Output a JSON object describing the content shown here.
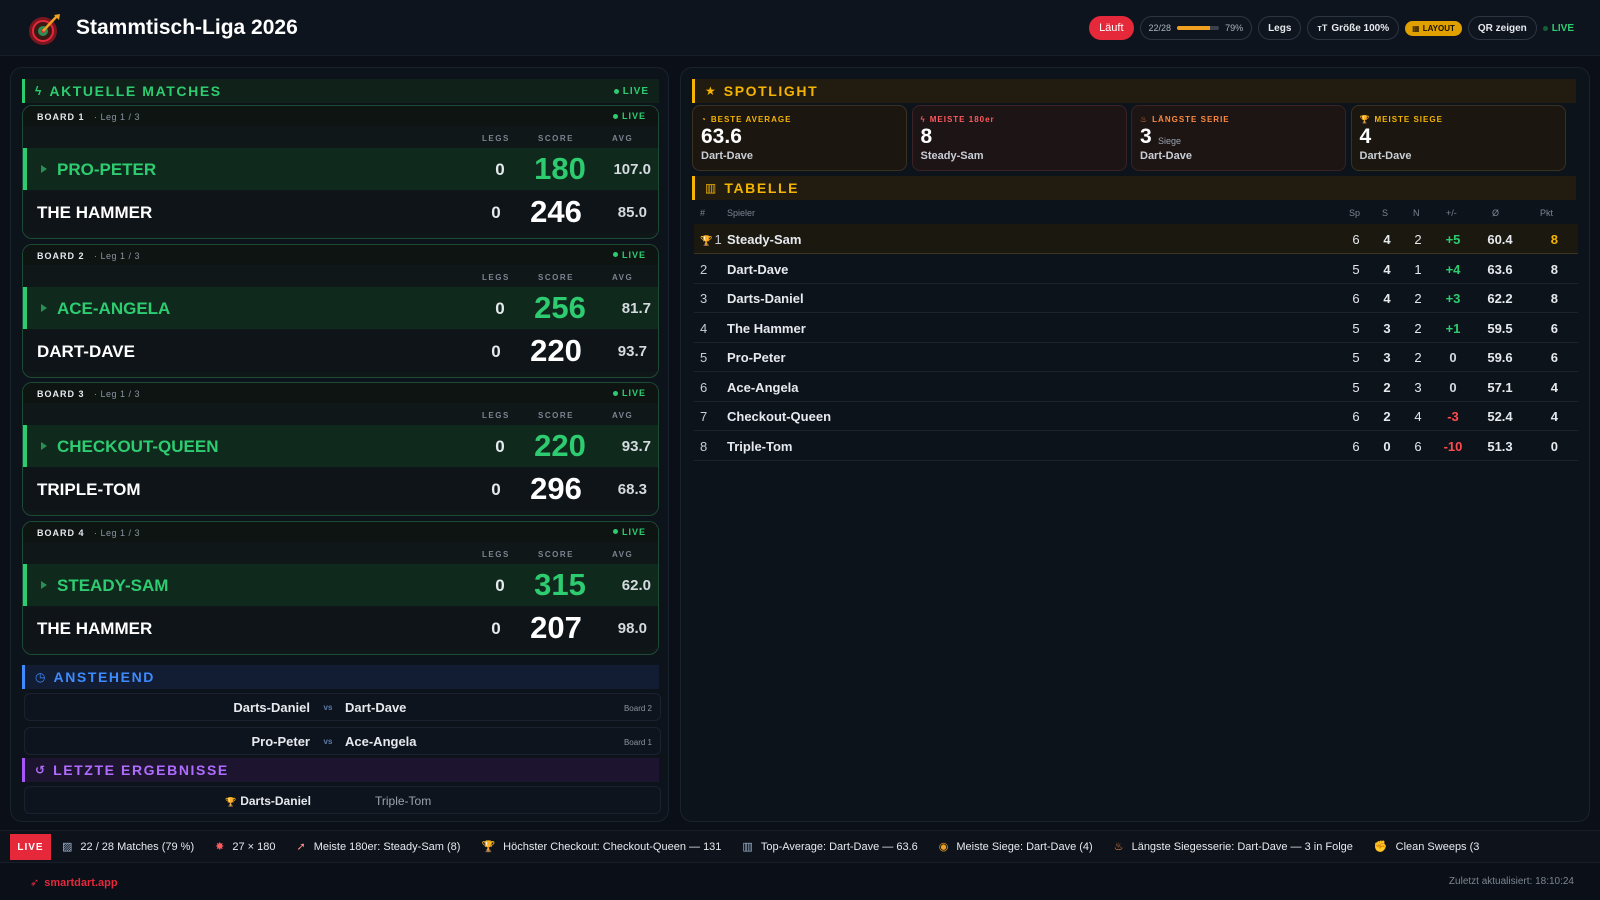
{
  "header": {
    "title": "Stammtisch-Liga 2026",
    "status": "Läuft",
    "progress_label": "22/28",
    "progress_percent": "79%",
    "progress_fraction": 0.79,
    "mode_label": "Legs",
    "size_label": "Größe 100%",
    "layout_label": "LAYOUT",
    "qr_label": "QR zeigen",
    "live_label": "LIVE"
  },
  "matches": {
    "heading": "AKTUELLE MATCHES",
    "live_label": "LIVE",
    "col_legs": "LEGS",
    "col_score": "SCORE",
    "col_avg": "AVG",
    "boards": [
      {
        "title": "BOARD 1",
        "leg": "· Leg 1 / 3",
        "live": "LIVE",
        "p1": {
          "name": "PRO-PETER",
          "legs": "0",
          "score": "180",
          "avg": "107.0"
        },
        "p2": {
          "name": "THE HAMMER",
          "legs": "0",
          "score": "246",
          "avg": "85.0"
        }
      },
      {
        "title": "BOARD 2",
        "leg": "· Leg 1 / 3",
        "live": "LIVE",
        "p1": {
          "name": "ACE-ANGELA",
          "legs": "0",
          "score": "256",
          "avg": "81.7"
        },
        "p2": {
          "name": "DART-DAVE",
          "legs": "0",
          "score": "220",
          "avg": "93.7"
        }
      },
      {
        "title": "BOARD 3",
        "leg": "· Leg 1 / 3",
        "live": "LIVE",
        "p1": {
          "name": "CHECKOUT-QUEEN",
          "legs": "0",
          "score": "220",
          "avg": "93.7"
        },
        "p2": {
          "name": "TRIPLE-TOM",
          "legs": "0",
          "score": "296",
          "avg": "68.3"
        }
      },
      {
        "title": "BOARD 4",
        "leg": "· Leg 1 / 3",
        "live": "LIVE",
        "p1": {
          "name": "STEADY-SAM",
          "legs": "0",
          "score": "315",
          "avg": "62.0"
        },
        "p2": {
          "name": "THE HAMMER",
          "legs": "0",
          "score": "207",
          "avg": "98.0"
        }
      }
    ]
  },
  "upcoming": {
    "heading": "ANSTEHEND",
    "vs": "vs",
    "items": [
      {
        "p1": "Darts-Daniel",
        "p2": "Dart-Dave",
        "board": "Board 2"
      },
      {
        "p1": "Pro-Peter",
        "p2": "Ace-Angela",
        "board": "Board 1"
      }
    ]
  },
  "results": {
    "heading": "LETZTE ERGEBNISSE",
    "items": [
      {
        "winner": "Darts-Daniel",
        "loser": "Triple-Tom"
      }
    ]
  },
  "spotlight": {
    "heading": "SPOTLIGHT",
    "cards": [
      {
        "label": "BESTE AVERAGE",
        "value": "63.6",
        "sub": "",
        "name": "Dart-Dave",
        "icon": "gauge-icon",
        "color": "#f5b400"
      },
      {
        "label": "MEISTE 180er",
        "value": "8",
        "sub": "",
        "name": "Steady-Sam",
        "icon": "bolt-icon",
        "color": "#ff5a5f"
      },
      {
        "label": "LÄNGSTE SERIE",
        "value": "3",
        "sub": "Siege",
        "name": "Dart-Dave",
        "icon": "flame-icon",
        "color": "#ff8a3d"
      },
      {
        "label": "MEISTE SIEGE",
        "value": "4",
        "sub": "",
        "name": "Dart-Dave",
        "icon": "trophy-icon",
        "color": "#f5b400"
      }
    ]
  },
  "table": {
    "heading": "TABELLE",
    "columns": {
      "rank": "#",
      "player": "Spieler",
      "sp": "Sp",
      "s": "S",
      "n": "N",
      "diff": "+/-",
      "avg": "Ø",
      "pts": "Pkt"
    },
    "rows": [
      {
        "rank": "1",
        "name": "Steady-Sam",
        "sp": "6",
        "s": "4",
        "n": "2",
        "diff": "+5",
        "avg": "60.4",
        "pts": "8"
      },
      {
        "rank": "2",
        "name": "Dart-Dave",
        "sp": "5",
        "s": "4",
        "n": "1",
        "diff": "+4",
        "avg": "63.6",
        "pts": "8"
      },
      {
        "rank": "3",
        "name": "Darts-Daniel",
        "sp": "6",
        "s": "4",
        "n": "2",
        "diff": "+3",
        "avg": "62.2",
        "pts": "8"
      },
      {
        "rank": "4",
        "name": "The Hammer",
        "sp": "5",
        "s": "3",
        "n": "2",
        "diff": "+1",
        "avg": "59.5",
        "pts": "6"
      },
      {
        "rank": "5",
        "name": "Pro-Peter",
        "sp": "5",
        "s": "3",
        "n": "2",
        "diff": "0",
        "avg": "59.6",
        "pts": "6"
      },
      {
        "rank": "6",
        "name": "Ace-Angela",
        "sp": "5",
        "s": "2",
        "n": "3",
        "diff": "0",
        "avg": "57.1",
        "pts": "4"
      },
      {
        "rank": "7",
        "name": "Checkout-Queen",
        "sp": "6",
        "s": "2",
        "n": "4",
        "diff": "-3",
        "avg": "52.4",
        "pts": "4"
      },
      {
        "rank": "8",
        "name": "Triple-Tom",
        "sp": "6",
        "s": "0",
        "n": "6",
        "diff": "-10",
        "avg": "51.3",
        "pts": "0"
      }
    ]
  },
  "ticker": {
    "live_label": "LIVE",
    "items": [
      {
        "icon": "chart-icon",
        "text": "22 / 28 Matches (79 %)"
      },
      {
        "icon": "burst-icon",
        "text": "27 × 180"
      },
      {
        "icon": "rocket-icon",
        "text": "Meiste 180er: Steady-Sam (8)"
      },
      {
        "icon": "trophy-icon",
        "text": "Höchster Checkout: Checkout-Queen — 131"
      },
      {
        "icon": "bar-chart-icon",
        "text": "Top-Average: Dart-Dave — 63.6"
      },
      {
        "icon": "medal-icon",
        "text": "Meiste Siege: Dart-Dave (4)"
      },
      {
        "icon": "flame-icon",
        "text": "Längste Siegesserie: Dart-Dave — 3 in Folge"
      },
      {
        "icon": "muscle-icon",
        "text": "Clean Sweeps (3"
      }
    ]
  },
  "footer": {
    "brand": "smartdart.app",
    "updated": "Zuletzt aktualisiert: 18:10:24"
  }
}
